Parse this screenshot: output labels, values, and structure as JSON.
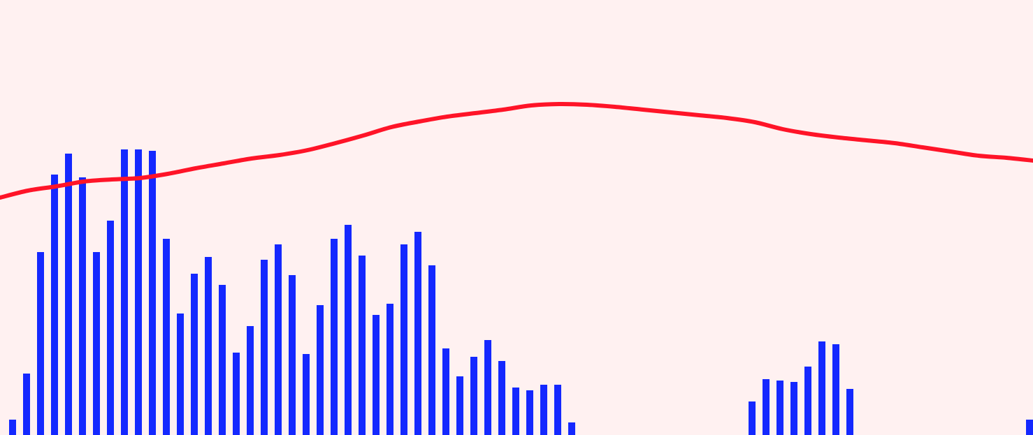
{
  "chart_data": {
    "type": "bar",
    "background": "#fff1f1",
    "bar_color": "#1428ff",
    "line_color": "#ff1428",
    "grid": false,
    "legend": "none",
    "ylim": [
      0,
      623
    ],
    "series": [
      {
        "type": "bar",
        "values": [
          {
            "x": 18,
            "y": 22
          },
          {
            "x": 38,
            "y": 88
          },
          {
            "x": 58,
            "y": 262
          },
          {
            "x": 78,
            "y": 373
          },
          {
            "x": 98,
            "y": 403
          },
          {
            "x": 118,
            "y": 369
          },
          {
            "x": 138,
            "y": 262
          },
          {
            "x": 158,
            "y": 307
          },
          {
            "x": 178,
            "y": 409
          },
          {
            "x": 198,
            "y": 409
          },
          {
            "x": 218,
            "y": 407
          },
          {
            "x": 238,
            "y": 281
          },
          {
            "x": 258,
            "y": 174
          },
          {
            "x": 278,
            "y": 231
          },
          {
            "x": 298,
            "y": 255
          },
          {
            "x": 318,
            "y": 215
          },
          {
            "x": 338,
            "y": 118
          },
          {
            "x": 358,
            "y": 156
          },
          {
            "x": 378,
            "y": 251
          },
          {
            "x": 398,
            "y": 273
          },
          {
            "x": 418,
            "y": 229
          },
          {
            "x": 438,
            "y": 116
          },
          {
            "x": 458,
            "y": 186
          },
          {
            "x": 478,
            "y": 281
          },
          {
            "x": 498,
            "y": 301
          },
          {
            "x": 518,
            "y": 257
          },
          {
            "x": 538,
            "y": 172
          },
          {
            "x": 558,
            "y": 188
          },
          {
            "x": 578,
            "y": 273
          },
          {
            "x": 598,
            "y": 291
          },
          {
            "x": 618,
            "y": 243
          },
          {
            "x": 638,
            "y": 124
          },
          {
            "x": 658,
            "y": 84
          },
          {
            "x": 678,
            "y": 112
          },
          {
            "x": 698,
            "y": 136
          },
          {
            "x": 718,
            "y": 106
          },
          {
            "x": 738,
            "y": 68
          },
          {
            "x": 758,
            "y": 64
          },
          {
            "x": 778,
            "y": 72
          },
          {
            "x": 798,
            "y": 72
          },
          {
            "x": 818,
            "y": 18
          },
          {
            "x": 1076,
            "y": 48
          },
          {
            "x": 1096,
            "y": 80
          },
          {
            "x": 1116,
            "y": 78
          },
          {
            "x": 1136,
            "y": 76
          },
          {
            "x": 1156,
            "y": 98
          },
          {
            "x": 1176,
            "y": 134
          },
          {
            "x": 1196,
            "y": 130
          },
          {
            "x": 1216,
            "y": 66
          },
          {
            "x": 1476,
            "y": 22
          }
        ]
      },
      {
        "type": "line",
        "x": [
          0,
          40,
          80,
          120,
          160,
          200,
          240,
          280,
          320,
          360,
          400,
          440,
          480,
          520,
          560,
          600,
          640,
          680,
          720,
          760,
          800,
          840,
          880,
          920,
          960,
          1000,
          1040,
          1080,
          1120,
          1160,
          1200,
          1240,
          1280,
          1320,
          1360,
          1400,
          1440,
          1478
        ],
        "y": [
          340,
          350,
          356,
          363,
          366,
          368,
          374,
          382,
          389,
          396,
          401,
          408,
          418,
          429,
          441,
          449,
          456,
          461,
          466,
          472,
          474,
          473,
          470,
          466,
          462,
          458,
          454,
          448,
          438,
          431,
          426,
          422,
          418,
          412,
          406,
          400,
          397,
          393
        ]
      }
    ]
  }
}
